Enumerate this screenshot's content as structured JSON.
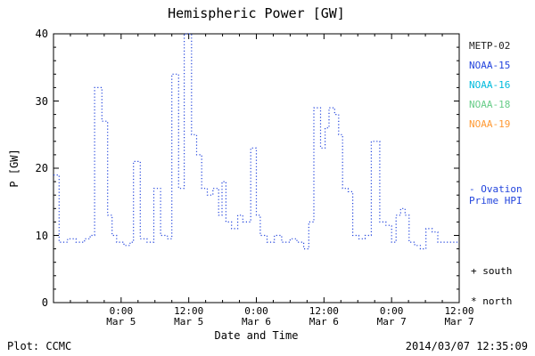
{
  "title": "Hemispheric Power [GW]",
  "footer": {
    "source": "Plot: CCMC",
    "timestamp": "2014/03/07 12:35:09"
  },
  "legend": {
    "satellites": [
      {
        "label": "METP-02",
        "color": "#222222"
      },
      {
        "label": "NOAA-15",
        "color": "#2244dd"
      },
      {
        "label": "NOAA-16",
        "color": "#00bbdd"
      },
      {
        "label": "NOAA-18",
        "color": "#66cc88"
      },
      {
        "label": "NOAA-19",
        "color": "#ff9933"
      }
    ],
    "ovation": {
      "line1": "- Ovation",
      "line2": "Prime HPI",
      "color": "#2244dd"
    },
    "markers": [
      {
        "label": "+ south"
      },
      {
        "label": "* north"
      }
    ]
  },
  "chart_data": {
    "type": "line",
    "title": "Hemispheric Power [GW]",
    "xlabel": "Date and Time",
    "ylabel": "P [GW]",
    "ylim": [
      0,
      40
    ],
    "xlim": [
      0,
      72
    ],
    "x_unit": "hours from plot start",
    "grid": false,
    "legend_position": "right",
    "y_ticks": [
      0,
      10,
      20,
      30,
      40
    ],
    "x_ticks": [
      {
        "x": 12,
        "line1": "0:00",
        "line2": "Mar 5"
      },
      {
        "x": 24,
        "line1": "12:00",
        "line2": "Mar 5"
      },
      {
        "x": 36,
        "line1": "0:00",
        "line2": "Mar 6"
      },
      {
        "x": 48,
        "line1": "12:00",
        "line2": "Mar 6"
      },
      {
        "x": 60,
        "line1": "0:00",
        "line2": "Mar 7"
      },
      {
        "x": 72,
        "line1": "12:00",
        "line2": "Mar 7"
      }
    ],
    "series": [
      {
        "name": "Hemispheric Power (Ovation Prime HPI)",
        "color": "#2244dd",
        "line_style": "dotted",
        "step": true,
        "points": [
          [
            0,
            19
          ],
          [
            1,
            9
          ],
          [
            2.5,
            9.5
          ],
          [
            4,
            9
          ],
          [
            5.5,
            9.5
          ],
          [
            6.5,
            10
          ],
          [
            7.3,
            32
          ],
          [
            8.6,
            27
          ],
          [
            9.6,
            13
          ],
          [
            10.4,
            10
          ],
          [
            11.2,
            9
          ],
          [
            12.5,
            8.5
          ],
          [
            13.6,
            9
          ],
          [
            14.2,
            21
          ],
          [
            15.4,
            9.5
          ],
          [
            16.6,
            9
          ],
          [
            17.8,
            17
          ],
          [
            19,
            10
          ],
          [
            20.2,
            9.5
          ],
          [
            21,
            34
          ],
          [
            22.2,
            17
          ],
          [
            23.2,
            40
          ],
          [
            24.5,
            25
          ],
          [
            25.4,
            22
          ],
          [
            26.3,
            17
          ],
          [
            27.3,
            16
          ],
          [
            28.3,
            17
          ],
          [
            29.3,
            13
          ],
          [
            29.9,
            18
          ],
          [
            30.6,
            12
          ],
          [
            31.6,
            11
          ],
          [
            32.7,
            13
          ],
          [
            33.6,
            12
          ],
          [
            35,
            23
          ],
          [
            36,
            13
          ],
          [
            36.7,
            10
          ],
          [
            37.9,
            9
          ],
          [
            39.2,
            10
          ],
          [
            40.5,
            9
          ],
          [
            42,
            9.5
          ],
          [
            43.2,
            9
          ],
          [
            44.4,
            8
          ],
          [
            45.3,
            12
          ],
          [
            46.2,
            29
          ],
          [
            47.4,
            23
          ],
          [
            48.2,
            26
          ],
          [
            48.9,
            29
          ],
          [
            49.9,
            28
          ],
          [
            50.6,
            25
          ],
          [
            51.3,
            17
          ],
          [
            52.3,
            16.5
          ],
          [
            53.1,
            10
          ],
          [
            54.2,
            9.5
          ],
          [
            55.3,
            10
          ],
          [
            56.4,
            24
          ],
          [
            57.9,
            12
          ],
          [
            59,
            11.5
          ],
          [
            60,
            9
          ],
          [
            60.8,
            13
          ],
          [
            61.6,
            14
          ],
          [
            62.4,
            13
          ],
          [
            63.1,
            9
          ],
          [
            64.1,
            8.5
          ],
          [
            65.1,
            8
          ],
          [
            66.1,
            11
          ],
          [
            67.2,
            10.5
          ],
          [
            68.2,
            9
          ],
          [
            72,
            9
          ]
        ]
      }
    ]
  }
}
